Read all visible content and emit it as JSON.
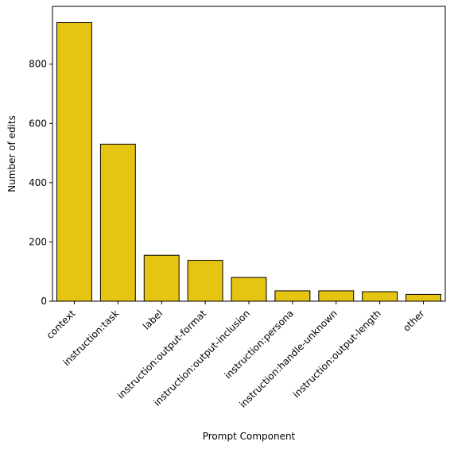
{
  "chart_data": {
    "type": "bar",
    "title": "",
    "xlabel": "Prompt Component",
    "ylabel": "Number of edits",
    "ylim": [
      0,
      995
    ],
    "yticks": [
      0,
      200,
      400,
      600,
      800
    ],
    "grid": false,
    "legend": "none",
    "categories": [
      "context",
      "instruction:task",
      "label",
      "instruction:output-format",
      "instruction:output-inclusion",
      "instruction:persona",
      "instruction:handle-unknown",
      "instruction:output-length",
      "other"
    ],
    "values": [
      940,
      530,
      155,
      138,
      80,
      35,
      35,
      32,
      23
    ],
    "colors": {
      "bar_fill": "#e6c412",
      "bar_edge": "#000000",
      "axis": "#000000",
      "background": "#ffffff"
    }
  }
}
